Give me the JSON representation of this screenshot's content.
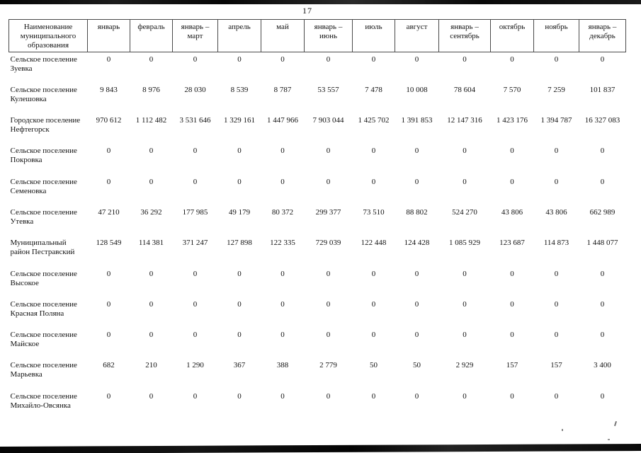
{
  "page": {
    "number": "17"
  },
  "table": {
    "header": {
      "name_column": "Наименование муниципального образования",
      "columns": [
        "январь",
        "февраль",
        "январь – март",
        "апрель",
        "май",
        "январь – июнь",
        "июль",
        "август",
        "январь – сентябрь",
        "октябрь",
        "ноябрь",
        "январь – декабрь"
      ]
    },
    "rows": [
      {
        "name": "Сельское поселение Зуевка",
        "values": [
          "0",
          "0",
          "0",
          "0",
          "0",
          "0",
          "0",
          "0",
          "0",
          "0",
          "0",
          "0"
        ]
      },
      {
        "name": "Сельское поселение Кулешовка",
        "values": [
          "9 843",
          "8 976",
          "28 030",
          "8 539",
          "8 787",
          "53 557",
          "7 478",
          "10 008",
          "78 604",
          "7 570",
          "7 259",
          "101 837"
        ]
      },
      {
        "name": "Городское поселение Нефтегорск",
        "values": [
          "970 612",
          "1 112 482",
          "3 531 646",
          "1 329 161",
          "1 447 966",
          "7 903 044",
          "1 425 702",
          "1 391 853",
          "12 147 316",
          "1 423 176",
          "1 394 787",
          "16 327 083"
        ]
      },
      {
        "name": "Сельское поселение Покровка",
        "values": [
          "0",
          "0",
          "0",
          "0",
          "0",
          "0",
          "0",
          "0",
          "0",
          "0",
          "0",
          "0"
        ]
      },
      {
        "name": "Сельское поселение Семеновка",
        "values": [
          "0",
          "0",
          "0",
          "0",
          "0",
          "0",
          "0",
          "0",
          "0",
          "0",
          "0",
          "0"
        ]
      },
      {
        "name": "Сельское поселение Утевка",
        "values": [
          "47 210",
          "36 292",
          "177 985",
          "49 179",
          "80 372",
          "299 377",
          "73 510",
          "88 802",
          "524 270",
          "43 806",
          "43 806",
          "662 989"
        ]
      },
      {
        "name": "Муниципальный район Пестравский",
        "values": [
          "128 549",
          "114 381",
          "371 247",
          "127 898",
          "122 335",
          "729 039",
          "122 448",
          "124 428",
          "1 085 929",
          "123 687",
          "114 873",
          "1 448 077"
        ]
      },
      {
        "name": "Сельское поселение Высокое",
        "values": [
          "0",
          "0",
          "0",
          "0",
          "0",
          "0",
          "0",
          "0",
          "0",
          "0",
          "0",
          "0"
        ]
      },
      {
        "name": "Сельское поселение Красная Поляна",
        "values": [
          "0",
          "0",
          "0",
          "0",
          "0",
          "0",
          "0",
          "0",
          "0",
          "0",
          "0",
          "0"
        ]
      },
      {
        "name": "Сельское поселение Майское",
        "values": [
          "0",
          "0",
          "0",
          "0",
          "0",
          "0",
          "0",
          "0",
          "0",
          "0",
          "0",
          "0"
        ]
      },
      {
        "name": "Сельское поселение Марьевка",
        "values": [
          "682",
          "210",
          "1 290",
          "367",
          "388",
          "2 779",
          "50",
          "50",
          "2 929",
          "157",
          "157",
          "3 400"
        ]
      },
      {
        "name": "Сельское поселение Михайло-Овсянка",
        "values": [
          "0",
          "0",
          "0",
          "0",
          "0",
          "0",
          "0",
          "0",
          "0",
          "0",
          "0",
          "0"
        ]
      }
    ]
  }
}
